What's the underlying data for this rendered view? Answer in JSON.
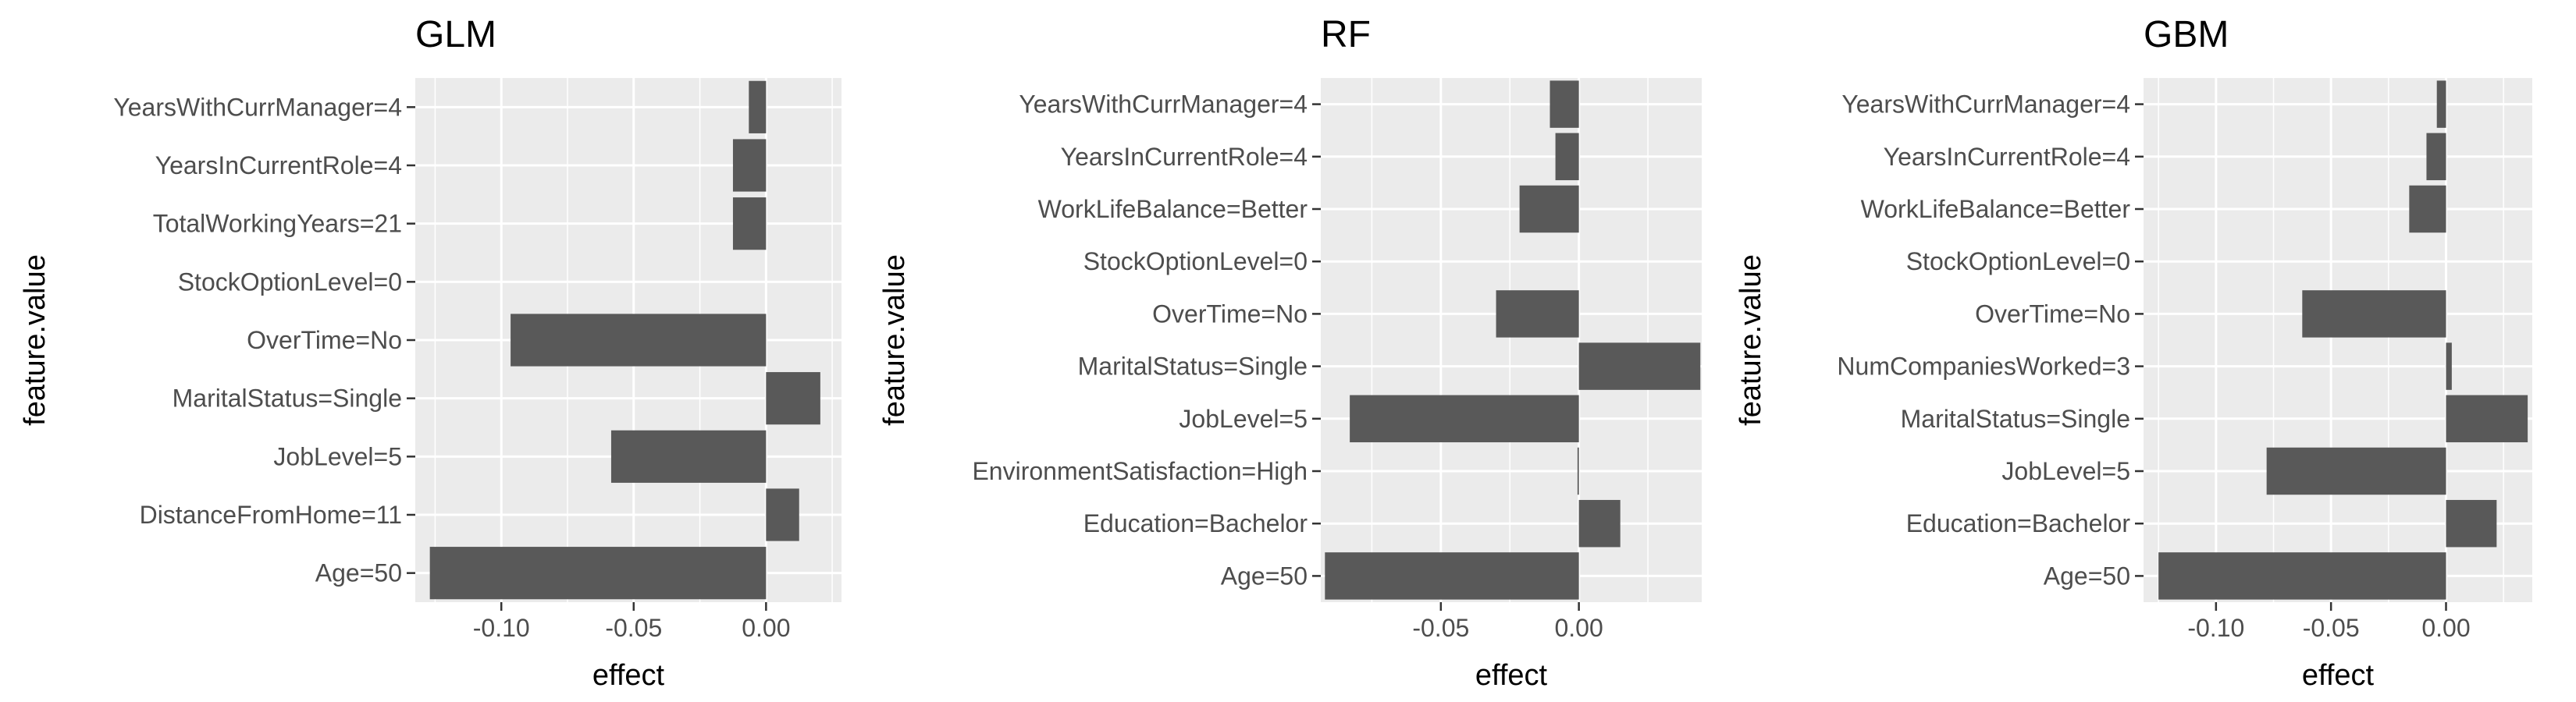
{
  "chart_data": [
    {
      "type": "bar",
      "orientation": "horizontal",
      "title": "GLM",
      "xlabel": "effect",
      "ylabel": "feature.value",
      "xlim": [
        -0.1325,
        0.0285
      ],
      "xticks": [
        -0.1,
        -0.05,
        0.0
      ],
      "xtick_labels": [
        "-0.10",
        "-0.05",
        "0.00"
      ],
      "grid": true,
      "bar_color": "#595959",
      "panel_background": "#ebebeb",
      "categories": [
        "YearsWithCurrManager=4",
        "YearsInCurrentRole=4",
        "TotalWorkingYears=21",
        "StockOptionLevel=0",
        "OverTime=No",
        "MaritalStatus=Single",
        "JobLevel=5",
        "DistanceFromHome=11",
        "Age=50"
      ],
      "values": [
        -0.0065,
        -0.0125,
        -0.0125,
        0.0,
        -0.0965,
        0.0205,
        -0.0585,
        0.0125,
        -0.127
      ]
    },
    {
      "type": "bar",
      "orientation": "horizontal",
      "title": "RF",
      "xlabel": "effect",
      "ylabel": "feature.value",
      "xlim": [
        -0.0935,
        0.0445
      ],
      "xticks": [
        -0.05,
        0.0
      ],
      "xtick_labels": [
        "-0.05",
        "0.00"
      ],
      "grid": true,
      "bar_color": "#595959",
      "panel_background": "#ebebeb",
      "categories": [
        "YearsWithCurrManager=4",
        "YearsInCurrentRole=4",
        "WorkLifeBalance=Better",
        "StockOptionLevel=0",
        "OverTime=No",
        "MaritalStatus=Single",
        "JobLevel=5",
        "EnvironmentSatisfaction=High",
        "Education=Bachelor",
        "Age=50"
      ],
      "values": [
        -0.0105,
        -0.0085,
        -0.0215,
        0.0,
        -0.03,
        0.044,
        -0.083,
        -0.0005,
        0.015,
        -0.092
      ]
    },
    {
      "type": "bar",
      "orientation": "horizontal",
      "title": "GBM",
      "xlabel": "effect",
      "ylabel": "feature.value",
      "xlim": [
        -0.1315,
        0.0375
      ],
      "xticks": [
        -0.1,
        -0.05,
        0.0
      ],
      "xtick_labels": [
        "-0.10",
        "-0.05",
        "0.00"
      ],
      "grid": true,
      "bar_color": "#595959",
      "panel_background": "#ebebeb",
      "categories": [
        "YearsWithCurrManager=4",
        "YearsInCurrentRole=4",
        "WorkLifeBalance=Better",
        "StockOptionLevel=0",
        "OverTime=No",
        "NumCompaniesWorked=3",
        "MaritalStatus=Single",
        "JobLevel=5",
        "Education=Bachelor",
        "Age=50"
      ],
      "values": [
        -0.004,
        -0.0085,
        -0.016,
        0.0,
        -0.0625,
        0.0025,
        0.0355,
        -0.078,
        0.022,
        -0.125
      ]
    }
  ]
}
